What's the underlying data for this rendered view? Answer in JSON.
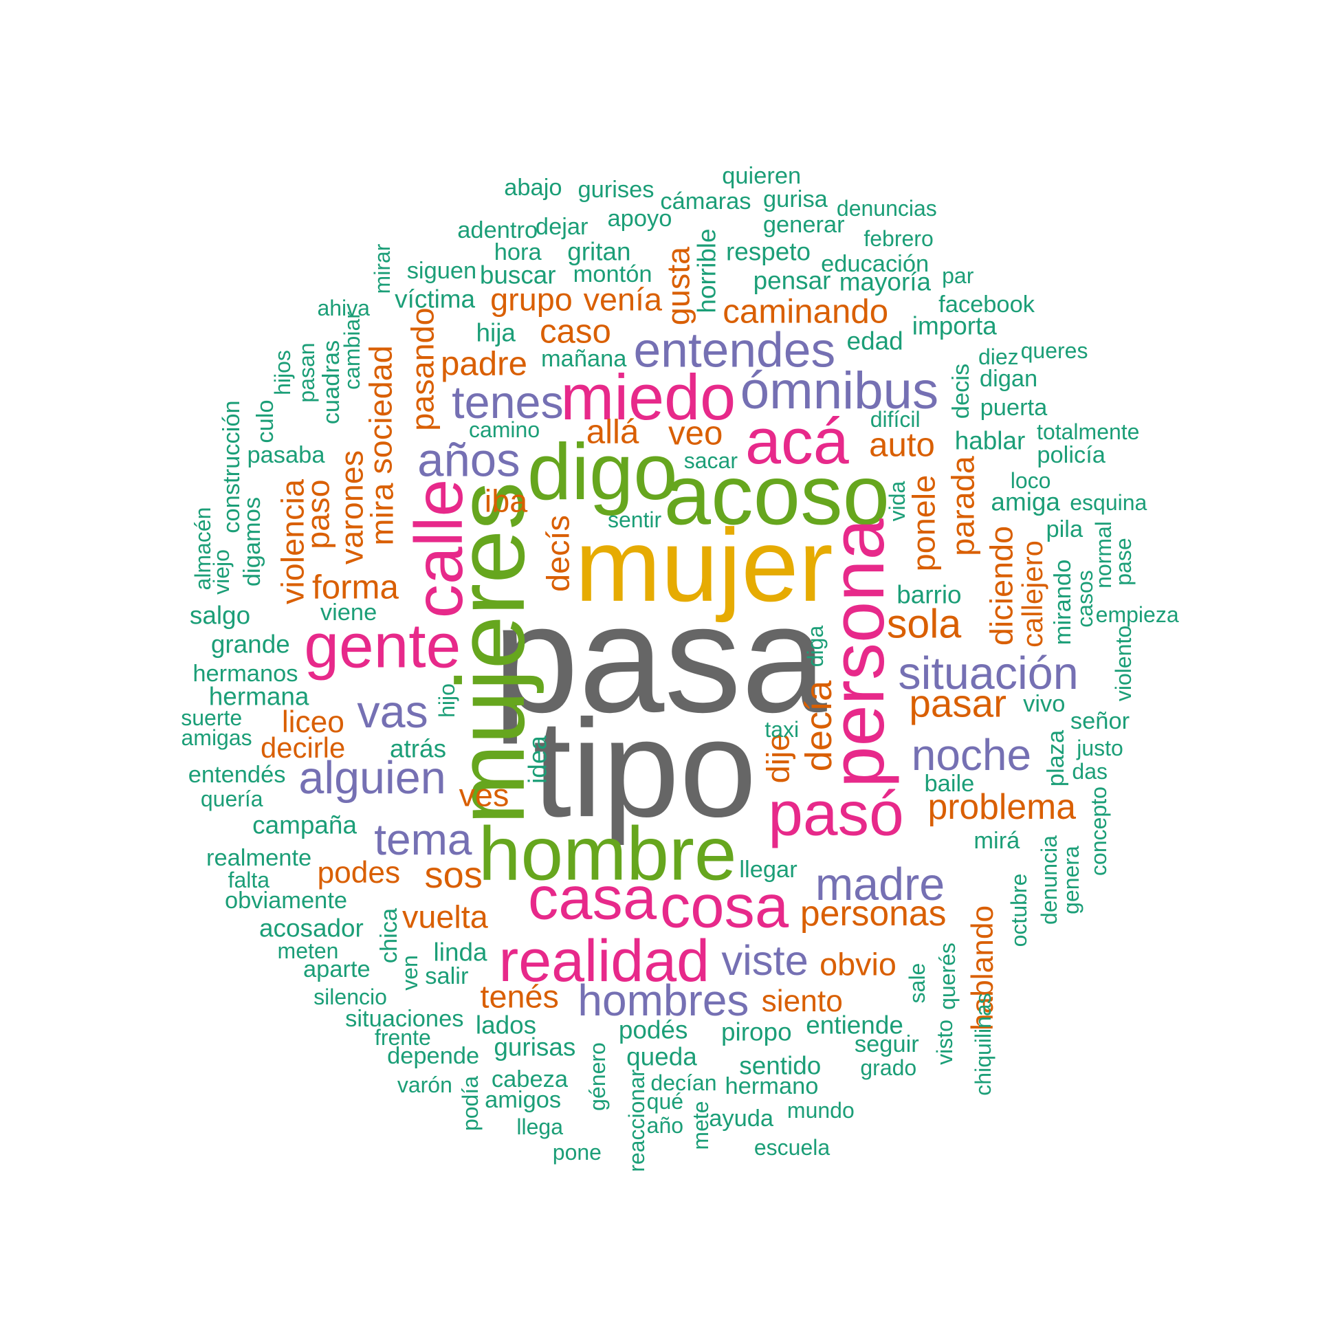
{
  "palette": {
    "gray": "#666666",
    "gold": "#E6AB02",
    "green": "#66A61E",
    "pink": "#E7298A",
    "purple": "#7570B3",
    "orange": "#D95F02",
    "teal": "#1B9E77"
  },
  "words": [
    {
      "text": "pasa",
      "color": "gray"
    },
    {
      "text": "tipo",
      "color": "gray"
    },
    {
      "text": "mujer",
      "color": "gold"
    },
    {
      "text": "mujeres",
      "color": "green"
    },
    {
      "text": "acoso",
      "color": "green"
    },
    {
      "text": "digo",
      "color": "green"
    },
    {
      "text": "hombre",
      "color": "green"
    },
    {
      "text": "persona",
      "color": "pink"
    },
    {
      "text": "calle",
      "color": "pink"
    },
    {
      "text": "miedo",
      "color": "pink"
    },
    {
      "text": "acá",
      "color": "pink"
    },
    {
      "text": "gente",
      "color": "pink"
    },
    {
      "text": "pasó",
      "color": "pink"
    },
    {
      "text": "casa",
      "color": "pink"
    },
    {
      "text": "cosa",
      "color": "pink"
    },
    {
      "text": "realidad",
      "color": "pink"
    },
    {
      "text": "ómnibus",
      "color": "purple"
    },
    {
      "text": "entendes",
      "color": "purple"
    },
    {
      "text": "tenes",
      "color": "purple"
    },
    {
      "text": "años",
      "color": "purple"
    },
    {
      "text": "situación",
      "color": "purple"
    },
    {
      "text": "vas",
      "color": "purple"
    },
    {
      "text": "alguien",
      "color": "purple"
    },
    {
      "text": "noche",
      "color": "purple"
    },
    {
      "text": "tema",
      "color": "purple"
    },
    {
      "text": "madre",
      "color": "purple"
    },
    {
      "text": "viste",
      "color": "purple"
    },
    {
      "text": "hombres",
      "color": "purple"
    },
    {
      "text": "caminando",
      "color": "orange"
    },
    {
      "text": "caso",
      "color": "orange"
    },
    {
      "text": "padre",
      "color": "orange"
    },
    {
      "text": "grupo",
      "color": "orange"
    },
    {
      "text": "venía",
      "color": "orange"
    },
    {
      "text": "gusta",
      "color": "orange"
    },
    {
      "text": "pasando",
      "color": "orange"
    },
    {
      "text": "allá",
      "color": "orange"
    },
    {
      "text": "veo",
      "color": "orange"
    },
    {
      "text": "auto",
      "color": "orange"
    },
    {
      "text": "iba",
      "color": "orange"
    },
    {
      "text": "decís",
      "color": "orange"
    },
    {
      "text": "ponele",
      "color": "orange"
    },
    {
      "text": "parada",
      "color": "orange"
    },
    {
      "text": "diciendo",
      "color": "orange"
    },
    {
      "text": "callejero",
      "color": "orange"
    },
    {
      "text": "sola",
      "color": "orange"
    },
    {
      "text": "forma",
      "color": "orange"
    },
    {
      "text": "mira",
      "color": "orange"
    },
    {
      "text": "sociedad",
      "color": "orange"
    },
    {
      "text": "varones",
      "color": "orange"
    },
    {
      "text": "paso",
      "color": "orange"
    },
    {
      "text": "violencia",
      "color": "orange"
    },
    {
      "text": "pasar",
      "color": "orange"
    },
    {
      "text": "decía",
      "color": "orange"
    },
    {
      "text": "dije",
      "color": "orange"
    },
    {
      "text": "liceo",
      "color": "orange"
    },
    {
      "text": "decirle",
      "color": "orange"
    },
    {
      "text": "ves",
      "color": "orange"
    },
    {
      "text": "problema",
      "color": "orange"
    },
    {
      "text": "sos",
      "color": "orange"
    },
    {
      "text": "podes",
      "color": "orange"
    },
    {
      "text": "vuelta",
      "color": "orange"
    },
    {
      "text": "personas",
      "color": "orange"
    },
    {
      "text": "obvio",
      "color": "orange"
    },
    {
      "text": "hablando",
      "color": "orange"
    },
    {
      "text": "tenés",
      "color": "orange"
    },
    {
      "text": "siento",
      "color": "orange"
    },
    {
      "text": "quieren",
      "color": "teal"
    },
    {
      "text": "abajo",
      "color": "teal"
    },
    {
      "text": "gurises",
      "color": "teal"
    },
    {
      "text": "cámaras",
      "color": "teal"
    },
    {
      "text": "gurisa",
      "color": "teal"
    },
    {
      "text": "denuncias",
      "color": "teal"
    },
    {
      "text": "adentro",
      "color": "teal"
    },
    {
      "text": "dejar",
      "color": "teal"
    },
    {
      "text": "apoyo",
      "color": "teal"
    },
    {
      "text": "generar",
      "color": "teal"
    },
    {
      "text": "febrero",
      "color": "teal"
    },
    {
      "text": "hora",
      "color": "teal"
    },
    {
      "text": "gritan",
      "color": "teal"
    },
    {
      "text": "respeto",
      "color": "teal"
    },
    {
      "text": "horrible",
      "color": "teal"
    },
    {
      "text": "educación",
      "color": "teal"
    },
    {
      "text": "mirar",
      "color": "teal"
    },
    {
      "text": "siguen",
      "color": "teal"
    },
    {
      "text": "buscar",
      "color": "teal"
    },
    {
      "text": "montón",
      "color": "teal"
    },
    {
      "text": "pensar",
      "color": "teal"
    },
    {
      "text": "mayoría",
      "color": "teal"
    },
    {
      "text": "par",
      "color": "teal"
    },
    {
      "text": "ahiva",
      "color": "teal"
    },
    {
      "text": "víctima",
      "color": "teal"
    },
    {
      "text": "facebook",
      "color": "teal"
    },
    {
      "text": "importa",
      "color": "teal"
    },
    {
      "text": "hija",
      "color": "teal"
    },
    {
      "text": "cambiar",
      "color": "teal"
    },
    {
      "text": "edad",
      "color": "teal"
    },
    {
      "text": "diez",
      "color": "teal"
    },
    {
      "text": "queres",
      "color": "teal"
    },
    {
      "text": "mañana",
      "color": "teal"
    },
    {
      "text": "hijos",
      "color": "teal"
    },
    {
      "text": "pasan",
      "color": "teal"
    },
    {
      "text": "cuadras",
      "color": "teal"
    },
    {
      "text": "digan",
      "color": "teal"
    },
    {
      "text": "decis",
      "color": "teal"
    },
    {
      "text": "puerta",
      "color": "teal"
    },
    {
      "text": "culo",
      "color": "teal"
    },
    {
      "text": "construcción",
      "color": "teal"
    },
    {
      "text": "camino",
      "color": "teal"
    },
    {
      "text": "difícil",
      "color": "teal"
    },
    {
      "text": "totalmente",
      "color": "teal"
    },
    {
      "text": "pasaba",
      "color": "teal"
    },
    {
      "text": "hablar",
      "color": "teal"
    },
    {
      "text": "sacar",
      "color": "teal"
    },
    {
      "text": "policía",
      "color": "teal"
    },
    {
      "text": "loco",
      "color": "teal"
    },
    {
      "text": "almacén",
      "color": "teal"
    },
    {
      "text": "digamos",
      "color": "teal"
    },
    {
      "text": "viejo",
      "color": "teal"
    },
    {
      "text": "vida",
      "color": "teal"
    },
    {
      "text": "amiga",
      "color": "teal"
    },
    {
      "text": "esquina",
      "color": "teal"
    },
    {
      "text": "sentir",
      "color": "teal"
    },
    {
      "text": "pila",
      "color": "teal"
    },
    {
      "text": "normal",
      "color": "teal"
    },
    {
      "text": "pase",
      "color": "teal"
    },
    {
      "text": "viene",
      "color": "teal"
    },
    {
      "text": "salgo",
      "color": "teal"
    },
    {
      "text": "barrio",
      "color": "teal"
    },
    {
      "text": "mirando",
      "color": "teal"
    },
    {
      "text": "casos",
      "color": "teal"
    },
    {
      "text": "empieza",
      "color": "teal"
    },
    {
      "text": "grande",
      "color": "teal"
    },
    {
      "text": "hermanos",
      "color": "teal"
    },
    {
      "text": "diga",
      "color": "teal"
    },
    {
      "text": "violento",
      "color": "teal"
    },
    {
      "text": "hermana",
      "color": "teal"
    },
    {
      "text": "hijo",
      "color": "teal"
    },
    {
      "text": "vivo",
      "color": "teal"
    },
    {
      "text": "suerte",
      "color": "teal"
    },
    {
      "text": "amigas",
      "color": "teal"
    },
    {
      "text": "taxi",
      "color": "teal"
    },
    {
      "text": "señor",
      "color": "teal"
    },
    {
      "text": "atrás",
      "color": "teal"
    },
    {
      "text": "justo",
      "color": "teal"
    },
    {
      "text": "plaza",
      "color": "teal"
    },
    {
      "text": "entendés",
      "color": "teal"
    },
    {
      "text": "idea",
      "color": "teal"
    },
    {
      "text": "das",
      "color": "teal"
    },
    {
      "text": "baile",
      "color": "teal"
    },
    {
      "text": "quería",
      "color": "teal"
    },
    {
      "text": "concepto",
      "color": "teal"
    },
    {
      "text": "campaña",
      "color": "teal"
    },
    {
      "text": "mirá",
      "color": "teal"
    },
    {
      "text": "denuncia",
      "color": "teal"
    },
    {
      "text": "realmente",
      "color": "teal"
    },
    {
      "text": "llegar",
      "color": "teal"
    },
    {
      "text": "genera",
      "color": "teal"
    },
    {
      "text": "falta",
      "color": "teal"
    },
    {
      "text": "octubre",
      "color": "teal"
    },
    {
      "text": "obviamente",
      "color": "teal"
    },
    {
      "text": "chica",
      "color": "teal"
    },
    {
      "text": "acosador",
      "color": "teal"
    },
    {
      "text": "meten",
      "color": "teal"
    },
    {
      "text": "linda",
      "color": "teal"
    },
    {
      "text": "aparte",
      "color": "teal"
    },
    {
      "text": "ven",
      "color": "teal"
    },
    {
      "text": "salir",
      "color": "teal"
    },
    {
      "text": "sale",
      "color": "teal"
    },
    {
      "text": "querés",
      "color": "teal"
    },
    {
      "text": "silencio",
      "color": "teal"
    },
    {
      "text": "visto",
      "color": "teal"
    },
    {
      "text": "chiquilinas",
      "color": "teal"
    },
    {
      "text": "situaciones",
      "color": "teal"
    },
    {
      "text": "lados",
      "color": "teal"
    },
    {
      "text": "entiende",
      "color": "teal"
    },
    {
      "text": "frente",
      "color": "teal"
    },
    {
      "text": "podés",
      "color": "teal"
    },
    {
      "text": "piropo",
      "color": "teal"
    },
    {
      "text": "seguir",
      "color": "teal"
    },
    {
      "text": "depende",
      "color": "teal"
    },
    {
      "text": "gurisas",
      "color": "teal"
    },
    {
      "text": "queda",
      "color": "teal"
    },
    {
      "text": "sentido",
      "color": "teal"
    },
    {
      "text": "grado",
      "color": "teal"
    },
    {
      "text": "género",
      "color": "teal"
    },
    {
      "text": "varón",
      "color": "teal"
    },
    {
      "text": "cabeza",
      "color": "teal"
    },
    {
      "text": "decían",
      "color": "teal"
    },
    {
      "text": "hermano",
      "color": "teal"
    },
    {
      "text": "podía",
      "color": "teal"
    },
    {
      "text": "amigos",
      "color": "teal"
    },
    {
      "text": "qué",
      "color": "teal"
    },
    {
      "text": "mundo",
      "color": "teal"
    },
    {
      "text": "reaccionar",
      "color": "teal"
    },
    {
      "text": "llega",
      "color": "teal"
    },
    {
      "text": "año",
      "color": "teal"
    },
    {
      "text": "ayuda",
      "color": "teal"
    },
    {
      "text": "mete",
      "color": "teal"
    },
    {
      "text": "escuela",
      "color": "teal"
    },
    {
      "text": "pone",
      "color": "teal"
    }
  ]
}
